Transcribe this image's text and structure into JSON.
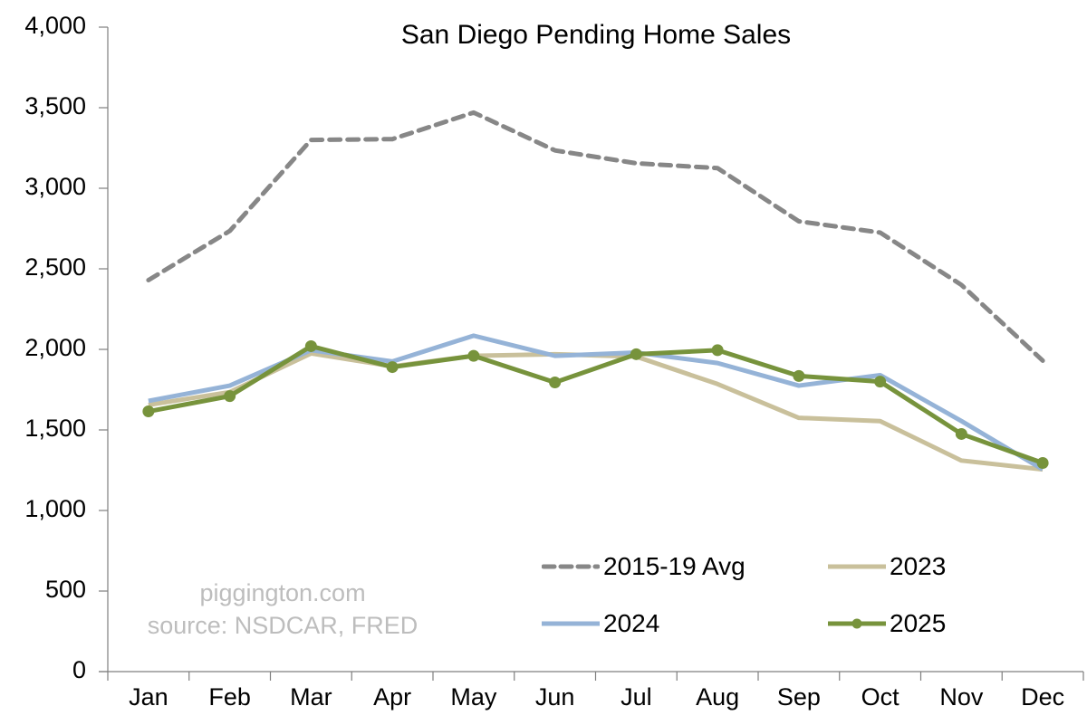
{
  "chart_data": {
    "type": "line",
    "title": "San Diego Pending Home Sales",
    "xlabel": "",
    "ylabel": "",
    "ylim": [
      0,
      4000
    ],
    "yticks": [
      0,
      500,
      1000,
      1500,
      2000,
      2500,
      3000,
      3500,
      4000
    ],
    "ytick_labels": [
      "0",
      "500",
      "1,000",
      "1,500",
      "2,000",
      "2,500",
      "3,000",
      "3,500",
      "4,000"
    ],
    "categories": [
      "Jan",
      "Feb",
      "Mar",
      "Apr",
      "May",
      "Jun",
      "Jul",
      "Aug",
      "Sep",
      "Oct",
      "Nov",
      "Dec"
    ],
    "grid": false,
    "legend_position": "lower right (inside plot)",
    "series": [
      {
        "name": "2015-19 Avg",
        "color": "#878787",
        "style": "dashed",
        "markers": false,
        "values": [
          2430,
          2735,
          3300,
          3305,
          3470,
          3235,
          3155,
          3125,
          2795,
          2725,
          2400,
          1930
        ]
      },
      {
        "name": "2023",
        "color": "#c9c09b",
        "style": "solid",
        "markers": false,
        "values": [
          1655,
          1735,
          1975,
          1895,
          1960,
          1970,
          1955,
          1785,
          1575,
          1555,
          1310,
          1255
        ]
      },
      {
        "name": "2024",
        "color": "#95b3d7",
        "style": "solid",
        "markers": false,
        "values": [
          1680,
          1775,
          1995,
          1925,
          2085,
          1960,
          1980,
          1915,
          1775,
          1840,
          1555,
          1255
        ]
      },
      {
        "name": "2025",
        "color": "#77933c",
        "style": "solid",
        "markers": true,
        "values": [
          1615,
          1710,
          2020,
          1890,
          1960,
          1795,
          1970,
          1995,
          1835,
          1800,
          1475,
          1295
        ]
      }
    ],
    "annotations": [
      "piggington.com",
      "source: NSDCAR, FRED"
    ]
  },
  "watermark": {
    "line1": "piggington.com",
    "line2": "source: NSDCAR, FRED"
  },
  "colors": {
    "axis": "#7f7f7f",
    "watermark": "#bdbdbd"
  }
}
